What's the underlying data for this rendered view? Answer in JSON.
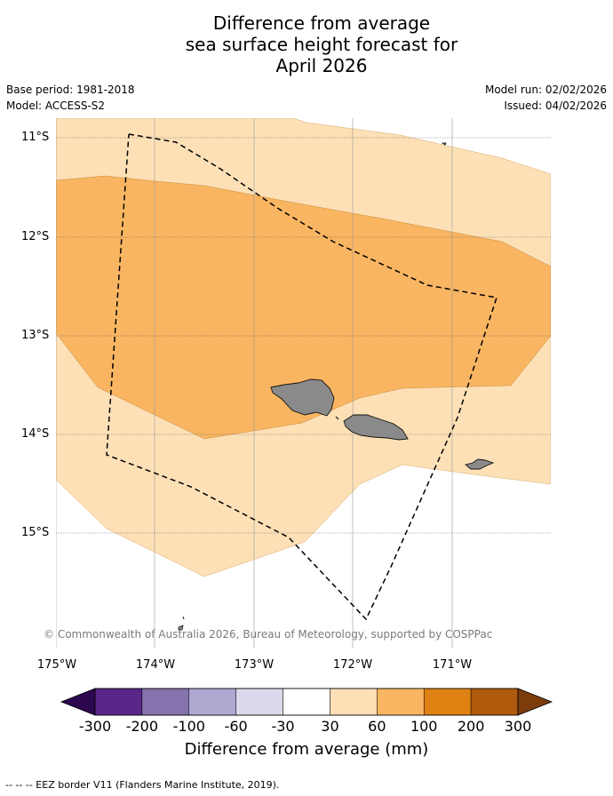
{
  "title": {
    "line1": "Difference from average",
    "line2": "sea surface height forecast for",
    "line3": "April 2026"
  },
  "meta": {
    "base_period": "Base period: 1981-2018",
    "model": "Model: ACCESS-S2",
    "model_run": "Model run: 02/02/2026",
    "issued": "Issued: 04/02/2026"
  },
  "map": {
    "latitude_labels": [
      "11°S",
      "12°S",
      "13°S",
      "14°S",
      "15°S"
    ],
    "longitude_labels": [
      "175°W",
      "174°W",
      "173°W",
      "172°W",
      "171°W"
    ],
    "lat_range": [
      -16.1,
      -10.8
    ],
    "lon_range": [
      -175.0,
      -170.0
    ],
    "copyright": "© Commonwealth of Australia 2026, Bureau of Meteorology, supported by COSPPac",
    "zone_colors": {
      "light": "#fde0b6",
      "medium": "#f9b561",
      "land": "#8a8a8a"
    }
  },
  "colorbar": {
    "ticks": [
      "-300",
      "-200",
      "-100",
      "-60",
      "-30",
      "30",
      "60",
      "100",
      "200",
      "300"
    ],
    "colors": [
      "#5a2687",
      "#8473ad",
      "#b1a8d2",
      "#dbdaec",
      "#ffffff",
      "#fde0b6",
      "#f9b561",
      "#e08213",
      "#b05a0d"
    ],
    "under_color": "#2d0650",
    "over_color": "#7c3c0b",
    "label": "Difference from average (mm)"
  },
  "footer": {
    "eez_legend": "--  --  -- EEZ border V11 (Flanders Marine Institute, 2019)."
  }
}
